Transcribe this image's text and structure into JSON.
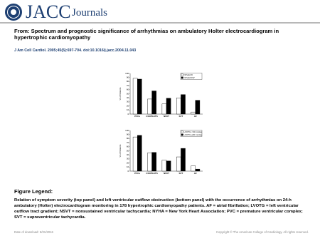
{
  "header": {
    "brand": "JACC",
    "brand_sub": "Journals"
  },
  "title": "From: Spectrum and prognostic significance of arrhythmias on ambulatory Holter electrocardiogram in hypertrophic cardiomyopathy",
  "citation": "J Am Coll Cardiol. 2005;45(5):697-704. doi:10.1016/j.jacc.2004.11.043",
  "figure": {
    "panels": [
      {
        "type": "bar",
        "ylabel": "% of Patients",
        "categories": [
          "PVCs",
          "COUPLETS",
          "NSVT",
          "SVT",
          "AF"
        ],
        "series": [
          {
            "name": "NYHA I/II",
            "color": "#ffffff",
            "values": [
              88,
              37,
              25,
              40,
              5
            ]
          },
          {
            "name": "NYHA III/IV",
            "color": "#000000",
            "values": [
              86,
              57,
              39,
              48,
              34
            ]
          }
        ],
        "ylim": [
          0,
          100
        ],
        "yticks": [
          0,
          10,
          20,
          30,
          40,
          50,
          60,
          70,
          80,
          90,
          100
        ]
      },
      {
        "type": "bar",
        "ylabel": "% of Patients",
        "categories": [
          "PVCs",
          "COUPLETS",
          "NSVT",
          "SVT",
          "AF"
        ],
        "series": [
          {
            "name": "LVOTG <30 mmHg",
            "color": "#ffffff",
            "values": [
              84,
              45,
              27,
              35,
              13
            ]
          },
          {
            "name": "LVOTG ≥30 mmHg",
            "color": "#000000",
            "values": [
              88,
              46,
              25,
              56,
              5
            ]
          }
        ],
        "ylim": [
          0,
          100
        ],
        "yticks": [
          0,
          10,
          20,
          30,
          40,
          50,
          60,
          70,
          80,
          90,
          100
        ]
      }
    ]
  },
  "legend": {
    "heading": "Figure Legend:",
    "text": "Relation of symptom severity (top panel) and left ventricular outflow obstruction (bottom panel) with the occurrence of arrhythmias on 24-h ambulatory (Holter) electrocardiogram monitoring in 178 hypertrophic cardiomyopathy patients. AF = atrial fibrillation; LVOTG = left ventricular outflow tract gradient; NSVT = nonsustained ventricular tachycardia; NYHA = New York Heart Association; PVC = premature ventricular complex; SVT = supraventricular tachycardia."
  },
  "footer": {
    "date": "Date of download: 5/31/2016",
    "copyright": "Copyright © The American College of Cardiology. All rights reserved."
  }
}
